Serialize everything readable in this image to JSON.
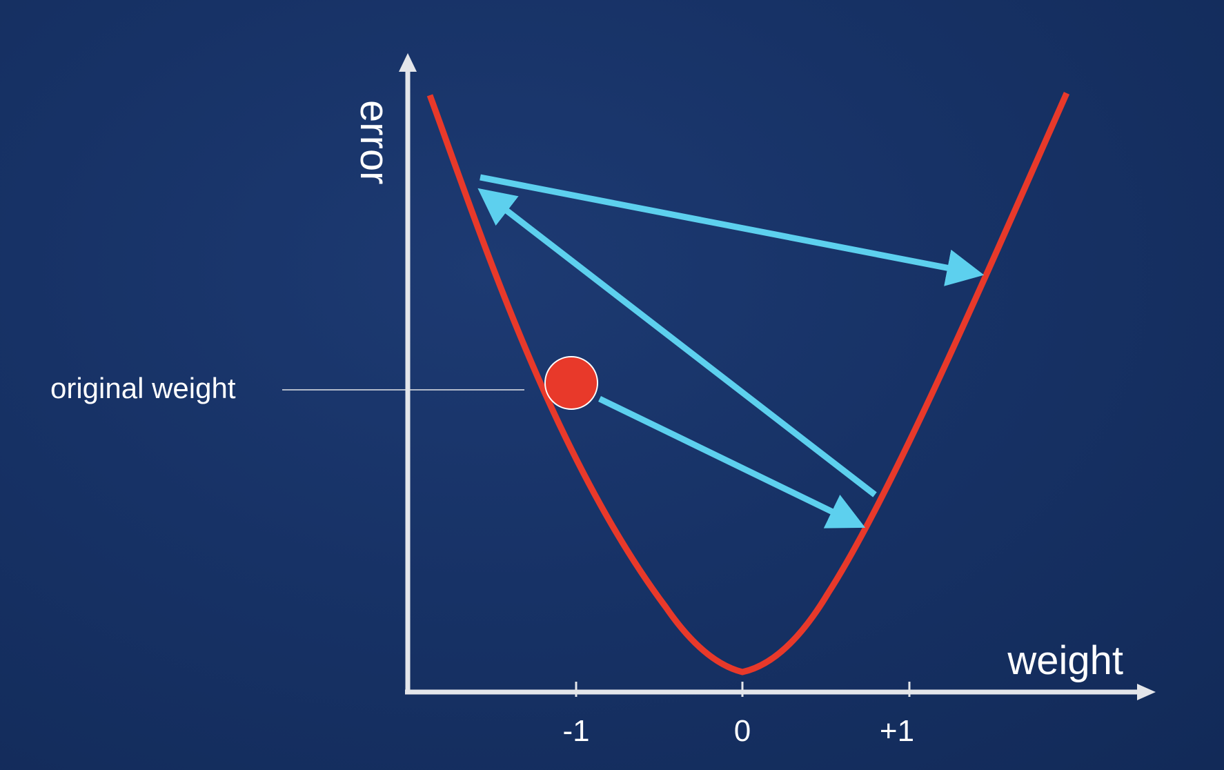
{
  "diagram": {
    "axis_labels": {
      "x": "weight",
      "y": "error"
    },
    "x_ticks": [
      "-1",
      "0",
      "+1"
    ],
    "marker_label": "original weight",
    "colors": {
      "background": "#152f60",
      "axis": "#e4e6ea",
      "curve": "#e8392a",
      "arrow": "#5dd0ee",
      "marker": "#e8392a",
      "text": "#ffffff"
    }
  }
}
